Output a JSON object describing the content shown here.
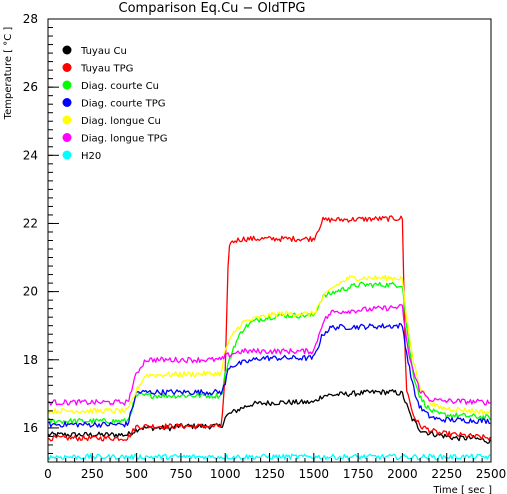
{
  "chart_data": {
    "type": "line",
    "title": "Comparison Eq.Cu − OldTPG",
    "xlabel": "Time [ sec ]",
    "ylabel": "Temperature [ °C ]",
    "xlim": [
      0,
      2500
    ],
    "ylim": [
      15,
      28
    ],
    "xticks": [
      0,
      250,
      500,
      750,
      1000,
      1250,
      1500,
      1750,
      2000,
      2250,
      2500
    ],
    "yticks": [
      16,
      18,
      20,
      22,
      24,
      26,
      28
    ],
    "grid": false,
    "legend_position": "top-left",
    "series": [
      {
        "name": "Tuyau Cu",
        "color": "#000000",
        "x": [
          0,
          450,
          500,
          520,
          700,
          720,
          980,
          1000,
          1020,
          1060,
          1100,
          1150,
          1300,
          1500,
          1550,
          1700,
          1850,
          1950,
          2000,
          2050,
          2100,
          2150,
          2200,
          2300,
          2400,
          2500
        ],
        "y": [
          15.8,
          15.8,
          15.95,
          16.0,
          16.0,
          16.05,
          16.05,
          16.3,
          16.4,
          16.5,
          16.6,
          16.7,
          16.75,
          16.75,
          16.95,
          17.0,
          17.05,
          17.05,
          17.0,
          16.3,
          15.95,
          15.85,
          15.8,
          15.7,
          15.7,
          15.6
        ]
      },
      {
        "name": "Tuyau TPG",
        "color": "#ff0000",
        "x": [
          0,
          450,
          500,
          980,
          1000,
          1020,
          1060,
          1100,
          1500,
          1550,
          2000,
          2020,
          2060,
          2100,
          2200,
          2500
        ],
        "y": [
          15.7,
          15.7,
          16.05,
          16.05,
          17.6,
          21.4,
          21.5,
          21.55,
          21.55,
          22.1,
          22.15,
          17.2,
          16.4,
          16.05,
          15.85,
          15.7
        ]
      },
      {
        "name": "Diag. courte Cu",
        "color": "#00ff00",
        "x": [
          0,
          450,
          500,
          980,
          1000,
          1050,
          1100,
          1150,
          1200,
          1300,
          1500,
          1550,
          1650,
          1750,
          2000,
          2030,
          2060,
          2100,
          2150,
          2200,
          2500
        ],
        "y": [
          16.2,
          16.2,
          16.95,
          16.95,
          17.6,
          18.4,
          18.9,
          19.1,
          19.2,
          19.3,
          19.3,
          19.85,
          20.05,
          20.2,
          20.2,
          18.7,
          17.6,
          16.9,
          16.55,
          16.4,
          16.3
        ]
      },
      {
        "name": "Diag. courte TPG",
        "color": "#0000ff",
        "x": [
          0,
          450,
          500,
          980,
          1000,
          1020,
          1200,
          1500,
          1550,
          1600,
          2000,
          2030,
          2070,
          2100,
          2150,
          2200,
          2500
        ],
        "y": [
          16.1,
          16.1,
          17.05,
          17.05,
          17.3,
          17.8,
          18.05,
          18.05,
          18.75,
          18.95,
          19.0,
          18.0,
          17.0,
          16.6,
          16.35,
          16.25,
          16.2
        ]
      },
      {
        "name": "Diag. longue Cu",
        "color": "#ffff00",
        "x": [
          0,
          450,
          500,
          550,
          980,
          1000,
          1050,
          1100,
          1200,
          1300,
          1500,
          1550,
          1600,
          1700,
          2000,
          2020,
          2060,
          2100,
          2150,
          2200,
          2500
        ],
        "y": [
          16.5,
          16.5,
          17.1,
          17.55,
          17.6,
          18.3,
          18.8,
          19.1,
          19.25,
          19.35,
          19.35,
          19.8,
          20.1,
          20.4,
          20.4,
          19.3,
          18.0,
          17.2,
          16.8,
          16.6,
          16.45
        ]
      },
      {
        "name": "Diag. longue TPG",
        "color": "#ff00ff",
        "x": [
          0,
          450,
          500,
          550,
          980,
          1000,
          1050,
          1100,
          1500,
          1550,
          1600,
          2000,
          2030,
          2070,
          2100,
          2150,
          2200,
          2500
        ],
        "y": [
          16.75,
          16.75,
          17.6,
          18.0,
          18.0,
          18.1,
          18.2,
          18.25,
          18.25,
          19.1,
          19.4,
          19.55,
          18.3,
          17.5,
          17.1,
          16.85,
          16.8,
          16.75
        ]
      },
      {
        "name": "H20",
        "color": "#00ffff",
        "x": [
          0,
          2500
        ],
        "y": [
          15.15,
          15.15
        ]
      }
    ]
  }
}
